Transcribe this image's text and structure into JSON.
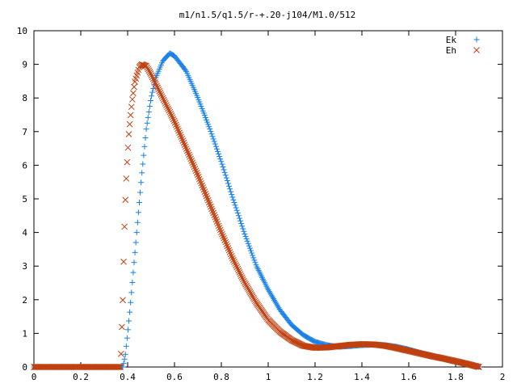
{
  "chart_data": {
    "type": "scatter",
    "title": "m1/n1.5/q1.5/r-+.20-j104/M1.0/512",
    "xlim": [
      0,
      2
    ],
    "ylim": [
      0,
      10
    ],
    "x_ticks": [
      0,
      0.2,
      0.4,
      0.6,
      0.8,
      1,
      1.2,
      1.4,
      1.6,
      1.8,
      2
    ],
    "y_ticks": [
      0,
      1,
      2,
      3,
      4,
      5,
      6,
      7,
      8,
      9,
      10
    ],
    "grid": false,
    "legend_position": "top-right",
    "series": [
      {
        "name": "Ek",
        "marker": "plus",
        "color": "#1a80e6",
        "points": [
          [
            0.0,
            0.0
          ],
          [
            0.38,
            0.0
          ],
          [
            0.39,
            0.35
          ],
          [
            0.4,
            1.0
          ],
          [
            0.41,
            1.7
          ],
          [
            0.42,
            2.5
          ],
          [
            0.43,
            3.3
          ],
          [
            0.44,
            4.1
          ],
          [
            0.45,
            4.9
          ],
          [
            0.46,
            5.7
          ],
          [
            0.47,
            6.4
          ],
          [
            0.48,
            7.1
          ],
          [
            0.5,
            8.0
          ],
          [
            0.52,
            8.6
          ],
          [
            0.55,
            9.1
          ],
          [
            0.58,
            9.33
          ],
          [
            0.6,
            9.25
          ],
          [
            0.65,
            8.8
          ],
          [
            0.7,
            8.0
          ],
          [
            0.75,
            7.1
          ],
          [
            0.8,
            6.1
          ],
          [
            0.85,
            5.0
          ],
          [
            0.9,
            3.95
          ],
          [
            0.95,
            3.0
          ],
          [
            1.0,
            2.3
          ],
          [
            1.05,
            1.7
          ],
          [
            1.1,
            1.25
          ],
          [
            1.15,
            0.95
          ],
          [
            1.2,
            0.75
          ],
          [
            1.25,
            0.65
          ],
          [
            1.3,
            0.6
          ],
          [
            1.35,
            0.62
          ],
          [
            1.4,
            0.65
          ],
          [
            1.45,
            0.66
          ],
          [
            1.5,
            0.65
          ],
          [
            1.55,
            0.6
          ],
          [
            1.6,
            0.52
          ],
          [
            1.65,
            0.42
          ],
          [
            1.7,
            0.33
          ],
          [
            1.75,
            0.24
          ],
          [
            1.8,
            0.16
          ],
          [
            1.85,
            0.08
          ],
          [
            1.9,
            0.0
          ]
        ]
      },
      {
        "name": "Eh",
        "marker": "cross",
        "color": "#c04010",
        "points": [
          [
            0.0,
            0.0
          ],
          [
            0.37,
            0.0
          ],
          [
            0.38,
            2.15
          ],
          [
            0.385,
            3.8
          ],
          [
            0.39,
            4.9
          ],
          [
            0.395,
            5.75
          ],
          [
            0.4,
            6.35
          ],
          [
            0.405,
            6.9
          ],
          [
            0.41,
            7.3
          ],
          [
            0.415,
            7.65
          ],
          [
            0.42,
            7.95
          ],
          [
            0.425,
            8.2
          ],
          [
            0.43,
            8.45
          ],
          [
            0.44,
            8.7
          ],
          [
            0.45,
            8.92
          ],
          [
            0.46,
            9.0
          ],
          [
            0.48,
            8.95
          ],
          [
            0.5,
            8.7
          ],
          [
            0.55,
            8.0
          ],
          [
            0.6,
            7.3
          ],
          [
            0.65,
            6.5
          ],
          [
            0.7,
            5.7
          ],
          [
            0.75,
            4.85
          ],
          [
            0.8,
            4.0
          ],
          [
            0.85,
            3.2
          ],
          [
            0.9,
            2.5
          ],
          [
            0.95,
            1.9
          ],
          [
            1.0,
            1.4
          ],
          [
            1.05,
            1.05
          ],
          [
            1.1,
            0.8
          ],
          [
            1.15,
            0.63
          ],
          [
            1.2,
            0.57
          ],
          [
            1.25,
            0.58
          ],
          [
            1.3,
            0.62
          ],
          [
            1.35,
            0.66
          ],
          [
            1.4,
            0.68
          ],
          [
            1.45,
            0.67
          ],
          [
            1.5,
            0.63
          ],
          [
            1.55,
            0.56
          ],
          [
            1.6,
            0.48
          ],
          [
            1.65,
            0.4
          ],
          [
            1.7,
            0.32
          ],
          [
            1.75,
            0.25
          ],
          [
            1.8,
            0.17
          ],
          [
            1.85,
            0.09
          ],
          [
            1.9,
            0.0
          ]
        ]
      }
    ]
  }
}
